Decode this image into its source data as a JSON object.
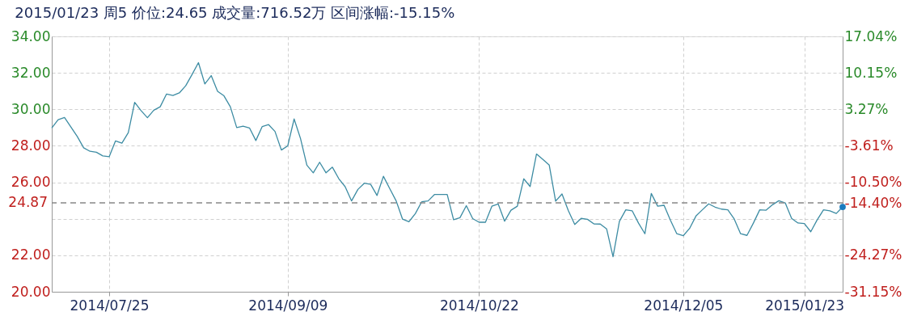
{
  "chart_data": {
    "type": "line",
    "title": "2015/01/23 周5  价位:24.65  成交量:716.52万  区间涨幅:-15.15%",
    "categories": [
      null,
      null,
      null,
      null,
      null,
      null,
      null,
      null,
      null,
      "2014/07/25",
      null,
      null,
      null,
      null,
      null,
      null,
      null,
      null,
      null,
      null,
      null,
      null,
      null,
      null,
      null,
      null,
      null,
      null,
      null,
      null,
      null,
      null,
      null,
      null,
      null,
      null,
      null,
      "2014/09/09",
      null,
      null,
      null,
      null,
      null,
      null,
      null,
      null,
      null,
      null,
      null,
      null,
      null,
      null,
      null,
      null,
      null,
      null,
      null,
      null,
      null,
      null,
      null,
      null,
      null,
      null,
      null,
      null,
      null,
      "2014/10/22",
      null,
      null,
      null,
      null,
      null,
      null,
      null,
      null,
      null,
      null,
      null,
      null,
      null,
      null,
      null,
      null,
      null,
      null,
      null,
      null,
      null,
      null,
      null,
      null,
      null,
      null,
      null,
      null,
      null,
      null,
      null,
      "2014/12/05",
      null,
      null,
      null,
      null,
      null,
      null,
      null,
      null,
      null,
      null,
      null,
      null,
      null,
      null,
      null,
      null,
      null,
      null,
      "2015/01/23",
      null,
      null,
      null,
      null,
      null,
      null
    ],
    "series": [
      {
        "type": "line",
        "color": "#3d8ca3",
        "values": [
          28.98,
          29.43,
          29.55,
          29.03,
          28.51,
          27.89,
          27.7,
          27.65,
          27.45,
          27.4,
          28.27,
          28.15,
          28.72,
          30.38,
          29.93,
          29.54,
          29.95,
          30.14,
          30.84,
          30.76,
          30.9,
          31.29,
          31.91,
          32.56,
          31.39,
          31.85,
          30.99,
          30.74,
          30.14,
          29.0,
          29.08,
          28.98,
          28.29,
          29.06,
          29.16,
          28.79,
          27.77,
          28.0,
          29.47,
          28.4,
          26.94,
          26.52,
          27.1,
          26.52,
          26.83,
          26.2,
          25.76,
          24.98,
          25.61,
          25.95,
          25.89,
          25.28,
          26.33,
          25.65,
          24.98,
          23.98,
          23.84,
          24.28,
          24.93,
          24.98,
          25.33,
          25.33,
          25.33,
          23.95,
          24.06,
          24.72,
          24.01,
          23.81,
          23.81,
          24.69,
          24.81,
          23.87,
          24.47,
          24.69,
          26.19,
          25.77,
          27.55,
          27.25,
          26.94,
          24.97,
          25.36,
          24.44,
          23.69,
          24.02,
          23.97,
          23.72,
          23.71,
          23.44,
          21.92,
          23.86,
          24.49,
          24.44,
          23.76,
          23.18,
          25.39,
          24.69,
          24.74,
          23.92,
          23.18,
          23.07,
          23.47,
          24.15,
          24.49,
          24.82,
          24.64,
          24.53,
          24.49,
          23.99,
          23.18,
          23.09,
          23.76,
          24.49,
          24.47,
          24.77,
          24.99,
          24.87,
          24.02,
          23.77,
          23.74,
          23.29,
          23.94,
          24.49,
          24.44,
          24.29,
          24.65
        ],
        "marker": "none",
        "line_style": "solid"
      },
      {
        "type": "scatter",
        "color": "#1a7bbf",
        "values": [
          null,
          null,
          null,
          null,
          null,
          null,
          null,
          null,
          null,
          null,
          null,
          null,
          null,
          null,
          null,
          null,
          null,
          null,
          null,
          null,
          null,
          null,
          null,
          null,
          null,
          null,
          null,
          null,
          null,
          null,
          null,
          null,
          null,
          null,
          null,
          null,
          null,
          null,
          null,
          null,
          null,
          null,
          null,
          null,
          null,
          null,
          null,
          null,
          null,
          null,
          null,
          null,
          null,
          null,
          null,
          null,
          null,
          null,
          null,
          null,
          null,
          null,
          null,
          null,
          null,
          null,
          null,
          null,
          null,
          null,
          null,
          null,
          null,
          null,
          null,
          null,
          null,
          null,
          null,
          null,
          null,
          null,
          null,
          null,
          null,
          null,
          null,
          null,
          null,
          null,
          null,
          null,
          null,
          null,
          null,
          null,
          null,
          null,
          null,
          null,
          null,
          null,
          null,
          null,
          null,
          null,
          null,
          null,
          null,
          null,
          null,
          null,
          null,
          null,
          null,
          null,
          null,
          null,
          null,
          null,
          null,
          null,
          null,
          null,
          24.65
        ],
        "marker": "circle"
      }
    ],
    "ylim": [
      20,
      34
    ],
    "yticks": [
      {
        "value": 20,
        "label": "20.00"
      },
      {
        "value": 22,
        "label": "22.00"
      },
      {
        "value": 24,
        "label": null
      },
      {
        "value": 26,
        "label": "26.00"
      },
      {
        "value": 28,
        "label": "28.00"
      },
      {
        "value": 30,
        "label": "30.00"
      },
      {
        "value": 32,
        "label": "32.00"
      },
      {
        "value": 34,
        "label": "34.00"
      }
    ],
    "y2lim": [
      -31.15,
      17.04
    ],
    "y2ticks": [
      {
        "value": -31.15,
        "label": "-31.15%"
      },
      {
        "value": -24.27,
        "label": "-24.27%"
      },
      {
        "value": -14.4,
        "label": "-14.40%"
      },
      {
        "value": -10.5,
        "label": "-10.50%"
      },
      {
        "value": -3.61,
        "label": "-3.61%"
      },
      {
        "value": 3.27,
        "label": "3.27%"
      },
      {
        "value": 10.15,
        "label": "10.15%"
      },
      {
        "value": 17.04,
        "label": "17.04%"
      }
    ],
    "ref_lines": [
      {
        "axis": "y",
        "value": 24.87,
        "label": "24.87",
        "color": "#888888",
        "line_style": "dashed"
      }
    ],
    "grid": true
  }
}
